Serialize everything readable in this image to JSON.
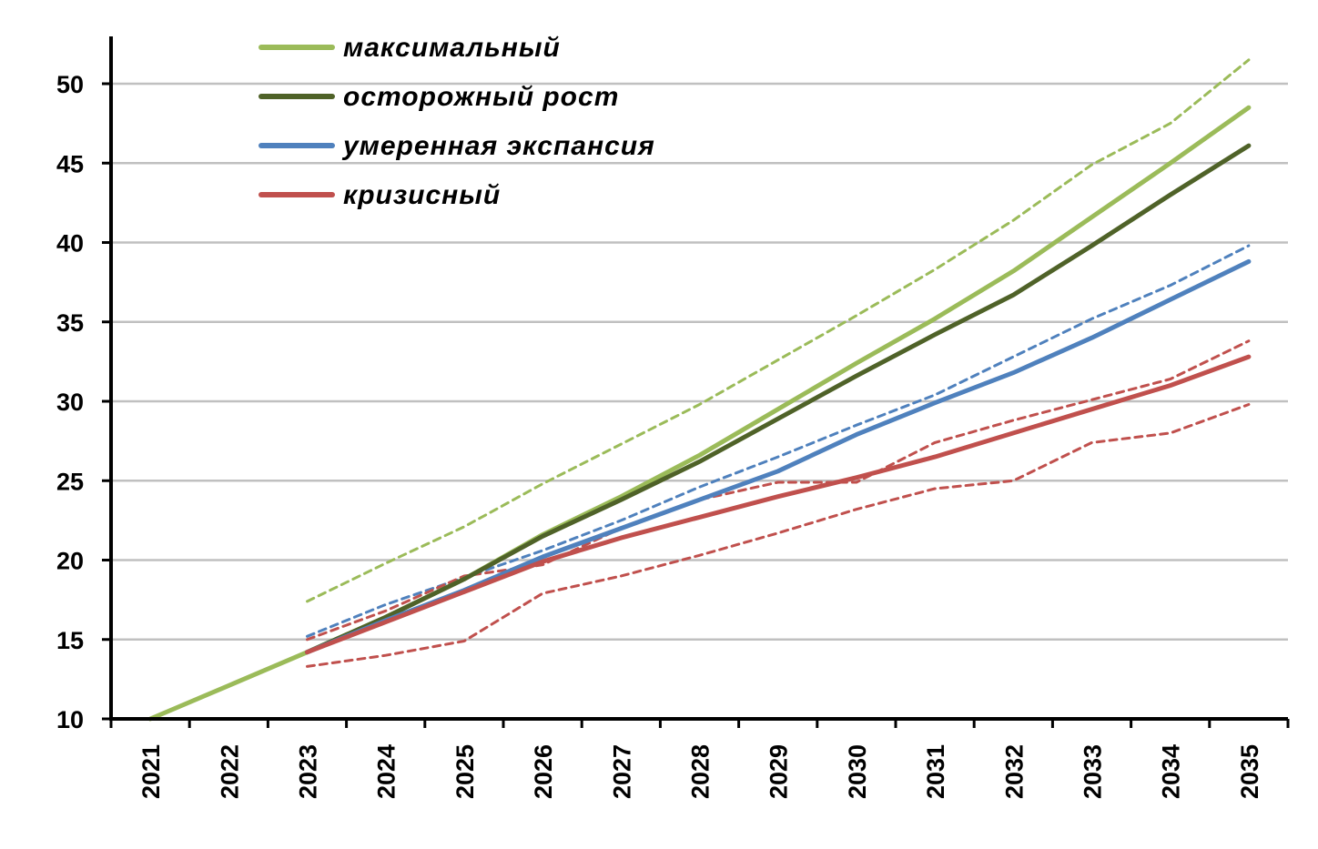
{
  "chart_data": {
    "type": "line",
    "title": "",
    "xlabel": "",
    "ylabel": "",
    "x": [
      "2021",
      "2022",
      "2023",
      "2024",
      "2025",
      "2026",
      "2027",
      "2028",
      "2029",
      "2030",
      "2031",
      "2032",
      "2033",
      "2034",
      "2035"
    ],
    "ylim": [
      10,
      50
    ],
    "yticks": [
      10,
      15,
      20,
      25,
      30,
      35,
      40,
      45,
      50
    ],
    "grid": true,
    "legend_position": "top-left",
    "series": [
      {
        "name": "максимальный",
        "color": "#9bbb59",
        "style": "solid",
        "values": [
          10.0,
          12.1,
          14.2,
          16.4,
          18.8,
          21.6,
          24.0,
          26.6,
          29.5,
          32.4,
          35.2,
          38.2,
          41.6,
          45.0,
          48.5
        ]
      },
      {
        "name": "осторожный рост",
        "color": "#4f6228",
        "style": "solid",
        "values": [
          null,
          null,
          14.2,
          16.4,
          18.8,
          21.5,
          23.8,
          26.2,
          28.9,
          31.6,
          34.2,
          36.7,
          39.8,
          43.0,
          46.1
        ]
      },
      {
        "name": "умеренная экспансия",
        "color": "#4f81bd",
        "style": "solid",
        "values": [
          null,
          null,
          14.2,
          16.2,
          18.1,
          20.2,
          22.0,
          23.8,
          25.6,
          27.9,
          29.9,
          31.8,
          34.0,
          36.4,
          38.8
        ]
      },
      {
        "name": "кризисный",
        "color": "#c0504d",
        "style": "solid",
        "values": [
          null,
          null,
          14.2,
          16.1,
          18.0,
          19.9,
          21.4,
          22.7,
          24.0,
          25.2,
          26.5,
          28.0,
          29.5,
          31.0,
          32.8
        ]
      },
      {
        "color": "#9bbb59",
        "style": "dashed",
        "values": [
          null,
          null,
          17.4,
          19.8,
          22.1,
          24.8,
          27.3,
          29.8,
          32.6,
          35.4,
          38.3,
          41.4,
          44.9,
          47.5,
          51.5
        ]
      },
      {
        "color": "#4f81bd",
        "style": "dashed",
        "values": [
          null,
          null,
          15.2,
          17.2,
          18.9,
          20.6,
          22.5,
          24.6,
          26.5,
          28.5,
          30.4,
          32.8,
          35.2,
          37.3,
          39.8
        ]
      },
      {
        "color": "#c0504d",
        "style": "dashed",
        "values": [
          null,
          null,
          15.0,
          16.8,
          19.0,
          19.7,
          22.0,
          23.8,
          24.9,
          24.9,
          27.4,
          28.8,
          30.1,
          31.4,
          33.8
        ]
      },
      {
        "color": "#c0504d",
        "style": "dashed",
        "values": [
          null,
          null,
          13.3,
          14.0,
          14.9,
          17.9,
          19.0,
          20.3,
          21.7,
          23.2,
          24.5,
          25.0,
          27.4,
          28.0,
          29.8
        ]
      }
    ]
  }
}
